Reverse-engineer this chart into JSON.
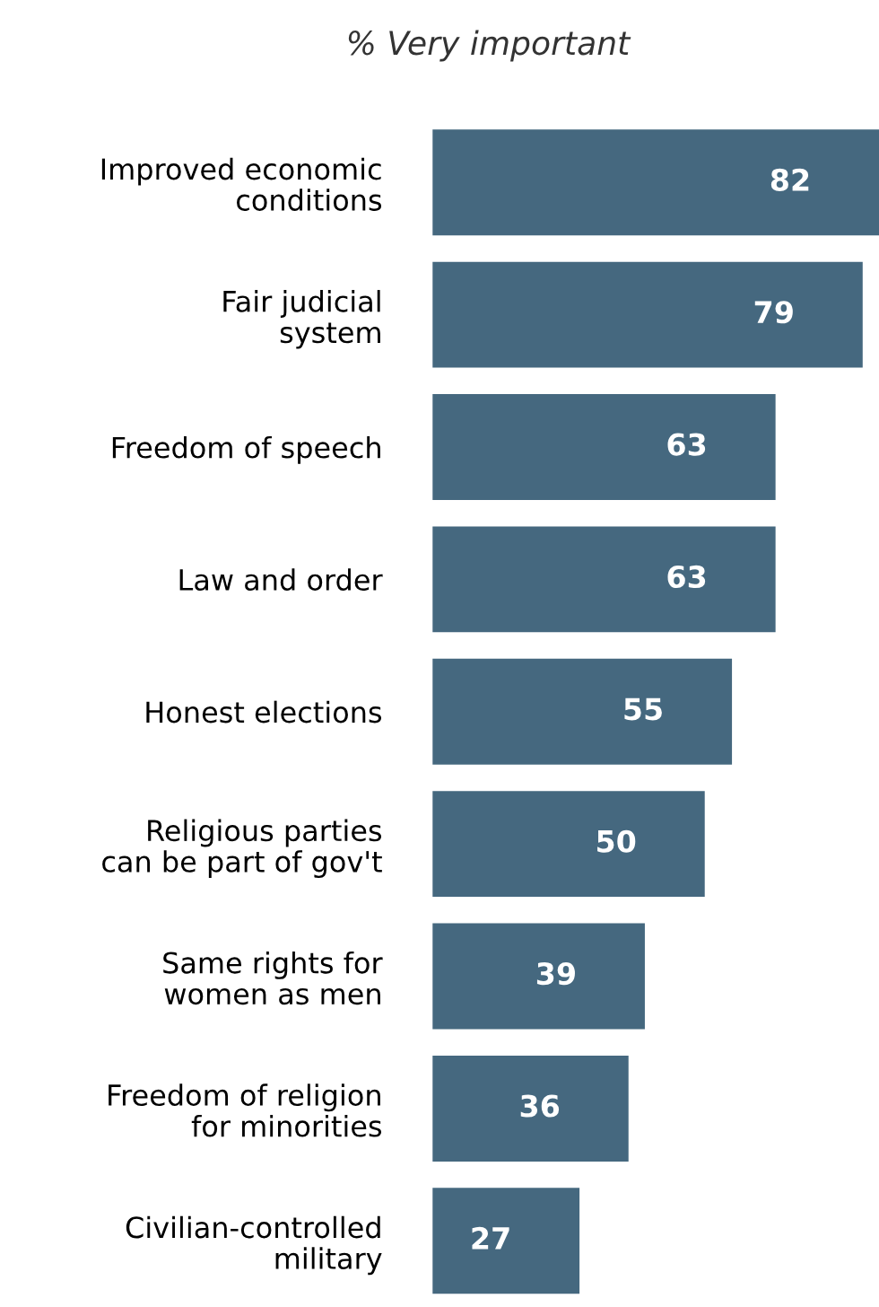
{
  "chart_data": {
    "type": "bar",
    "orientation": "horizontal",
    "title": "% Very important",
    "categories": [
      "Improved economic\nconditions",
      "Fair judicial\nsystem",
      "Freedom of speech",
      "Law and order",
      "Honest elections",
      "Religious parties\ncan be part of gov't",
      "Same rights for\nwomen as men",
      "Freedom of religion\nfor minorities",
      "Civilian-controlled\nmilitary"
    ],
    "values": [
      82,
      79,
      63,
      63,
      55,
      50,
      39,
      36,
      27
    ],
    "color": "#45687f",
    "data_labels": true,
    "grid": false,
    "legend": false,
    "tick_labels": "y"
  }
}
